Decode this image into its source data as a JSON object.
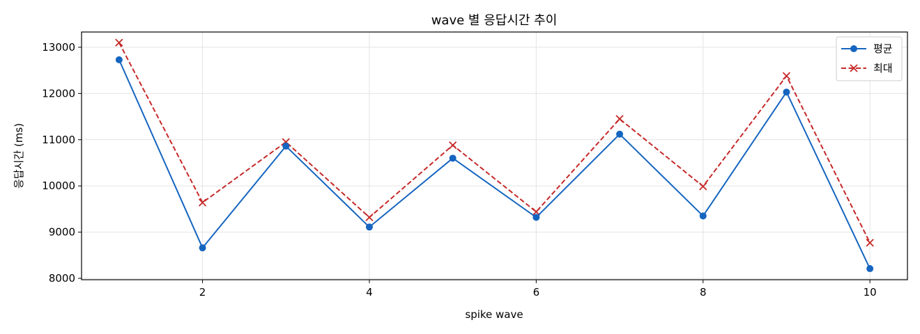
{
  "chart_data": {
    "type": "line",
    "title": "wave 별 응답시간 추이",
    "xlabel": "spike wave",
    "ylabel": "응답시간 (ms)",
    "x": [
      1,
      2,
      3,
      4,
      5,
      6,
      7,
      8,
      9,
      10
    ],
    "xlim": [
      0.55,
      10.45
    ],
    "ylim": [
      7970,
      13330
    ],
    "x_ticks": [
      2,
      4,
      6,
      8,
      10
    ],
    "y_ticks": [
      8000,
      9000,
      10000,
      11000,
      12000,
      13000
    ],
    "grid": true,
    "legend_position": "top-right",
    "series": [
      {
        "name": "평균",
        "values": [
          12730,
          8660,
          10860,
          9110,
          10600,
          9320,
          11120,
          9350,
          12030,
          8210
        ],
        "color": "#1565c0",
        "line_style": "solid",
        "marker": "circle"
      },
      {
        "name": "최대",
        "values": [
          13100,
          9640,
          10950,
          9320,
          10880,
          9440,
          11450,
          9990,
          12380,
          8770
        ],
        "color": "#c62828",
        "line_style": "dashed",
        "marker": "x"
      }
    ]
  }
}
